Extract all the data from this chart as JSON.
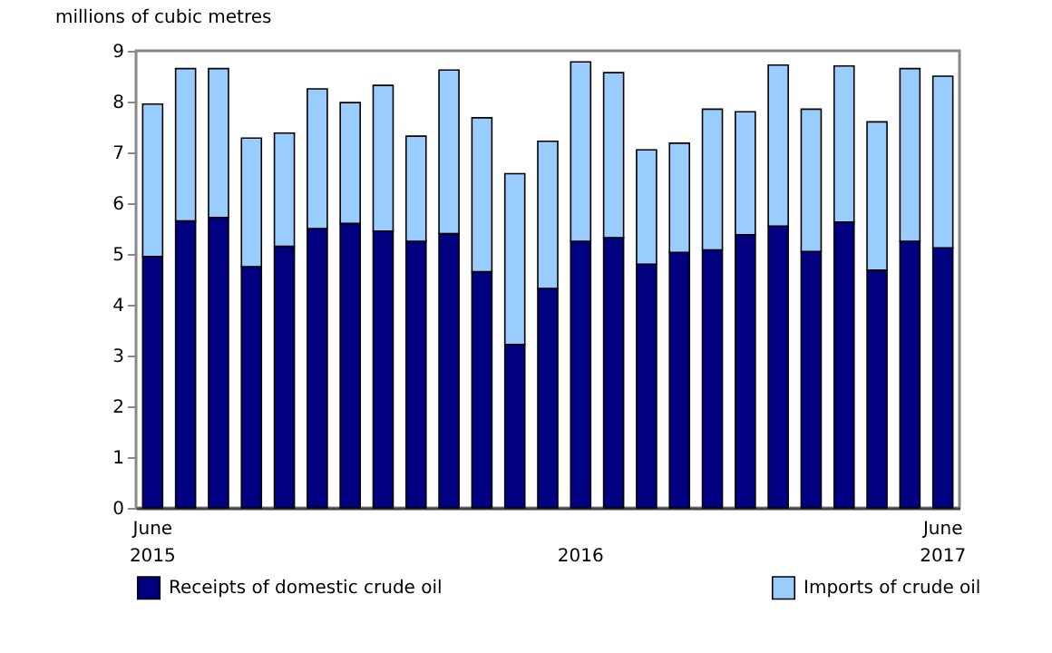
{
  "chart_data": {
    "type": "bar",
    "stacked": true,
    "ylabel": "millions of cubic metres",
    "categories": [
      "June 2015",
      null,
      null,
      null,
      null,
      null,
      null,
      null,
      null,
      null,
      null,
      null,
      null,
      "2016",
      null,
      null,
      null,
      null,
      null,
      null,
      null,
      null,
      null,
      null,
      "June 2017"
    ],
    "series": [
      {
        "name": "Receipts of domestic crude oil",
        "color": "#000080",
        "values": [
          4.95,
          5.65,
          5.72,
          4.75,
          5.15,
          5.5,
          5.6,
          5.45,
          5.25,
          5.4,
          4.65,
          3.22,
          4.32,
          5.25,
          5.32,
          4.8,
          5.03,
          5.08,
          5.38,
          5.55,
          5.05,
          5.63,
          4.68,
          5.25,
          5.12
        ]
      },
      {
        "name": "Imports of crude oil",
        "color": "#99ccff",
        "values": [
          3.0,
          3.0,
          2.93,
          2.53,
          2.23,
          2.75,
          2.38,
          2.87,
          2.07,
          3.22,
          3.03,
          3.36,
          2.9,
          3.53,
          3.25,
          2.25,
          2.15,
          2.77,
          2.42,
          3.17,
          2.8,
          3.07,
          2.92,
          3.4,
          3.38
        ]
      }
    ],
    "ylim": [
      0,
      9
    ],
    "yticks": [
      0,
      1,
      2,
      3,
      4,
      5,
      6,
      7,
      8,
      9
    ],
    "grid": false,
    "legend": "bottom"
  }
}
